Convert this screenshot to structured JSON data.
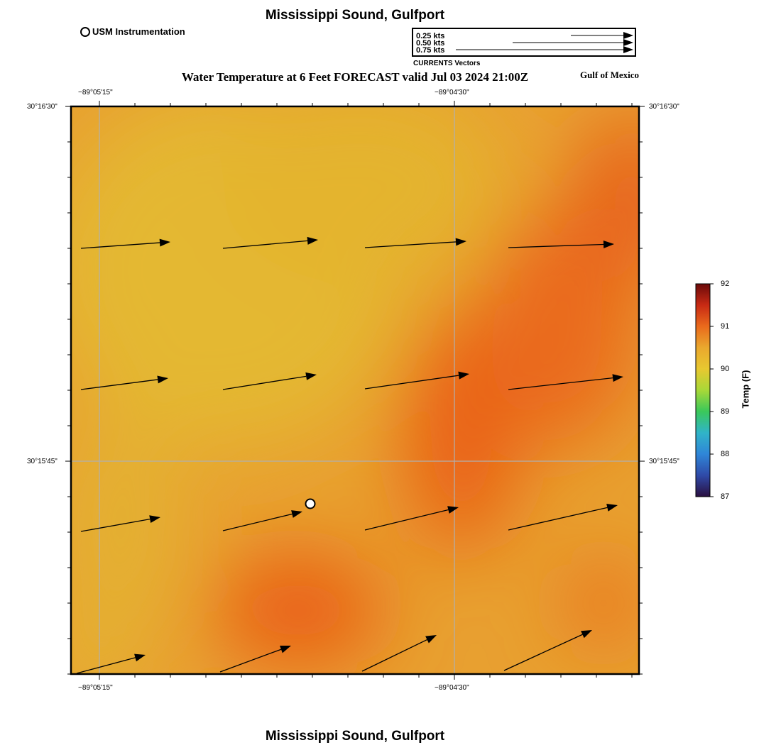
{
  "header": {
    "title": "Mississippi Sound, Gulfport",
    "subtitle": "Water Temperature at 6 Feet FORECAST valid Jul 03 2024 21:00Z",
    "region": "Gulf of Mexico",
    "usm_legend": "USM Instrumentation"
  },
  "vector_legend": {
    "title": "CURRENTS Vectors",
    "entries": [
      "0.25 kts",
      "0.50 kts",
      "0.75 kts"
    ]
  },
  "map": {
    "lon_labels": [
      "−89°05'15\"",
      "−89°04'30\""
    ],
    "lat_labels": [
      "30°16'30\"",
      "30°15'45\""
    ],
    "colors": {
      "base": "#e8a030",
      "warm": "#ea6218",
      "cool": "#e4b832"
    }
  },
  "colorbar": {
    "title": "Temp (F)",
    "ticks": [
      "92",
      "91",
      "90",
      "89",
      "88",
      "87"
    ],
    "range": [
      87,
      92
    ]
  },
  "footer": {
    "title": "Mississippi Sound, Gulfport"
  }
}
